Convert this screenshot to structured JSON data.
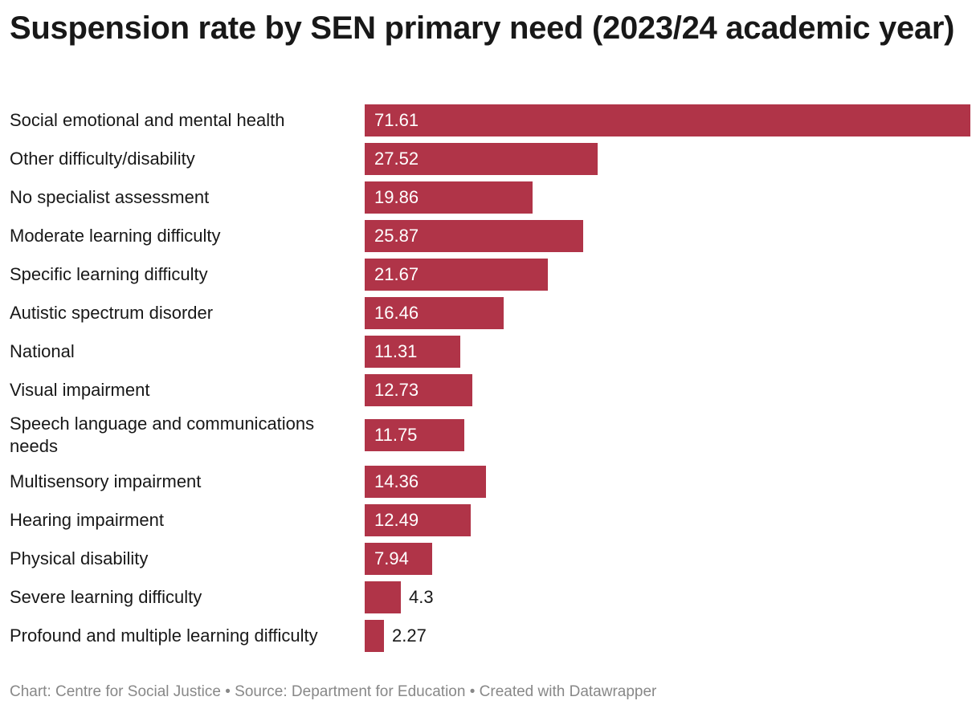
{
  "chart_data": {
    "type": "bar",
    "orientation": "horizontal",
    "title": "Suspension rate by SEN primary need (2023/24 academic year)",
    "categories": [
      "Social emotional and mental health",
      "Other difficulty/disability",
      "No specialist assessment",
      "Moderate learning difficulty",
      "Specific learning difficulty",
      "Autistic spectrum disorder",
      "National",
      "Visual impairment",
      "Speech language and communications needs",
      "Multisensory impairment",
      "Hearing impairment",
      "Physical disability",
      "Severe learning difficulty",
      "Profound and multiple learning difficulty"
    ],
    "values": [
      71.61,
      27.52,
      19.86,
      25.87,
      21.67,
      16.46,
      11.31,
      12.73,
      11.75,
      14.36,
      12.49,
      7.94,
      4.3,
      2.27
    ],
    "xlim": [
      0,
      71.61
    ],
    "bar_color": "#b03448",
    "xlabel": "",
    "ylabel": ""
  },
  "footer": {
    "credit": "Chart: Centre for Social Justice",
    "separator": "•",
    "source": "Source: Department for Education",
    "tool": "Created with Datawrapper"
  }
}
